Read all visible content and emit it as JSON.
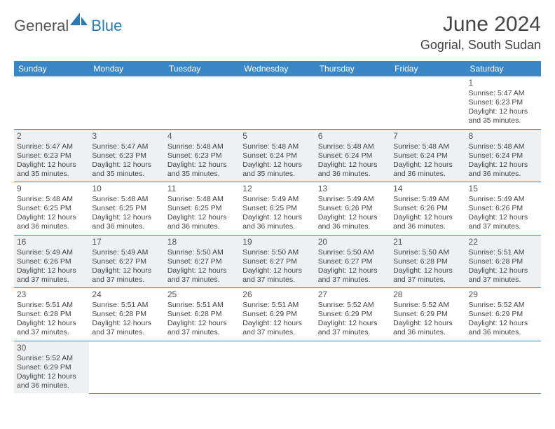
{
  "brand": {
    "text1": "General",
    "text2": "Blue",
    "shape_color": "#2a7ab8"
  },
  "title": "June 2024",
  "location": "Gogrial, South Sudan",
  "header_bg": "#3a87c8",
  "alt_row_bg": "#eef0f2",
  "days_of_week": [
    "Sunday",
    "Monday",
    "Tuesday",
    "Wednesday",
    "Thursday",
    "Friday",
    "Saturday"
  ],
  "weeks": [
    {
      "alt": false,
      "cells": [
        null,
        null,
        null,
        null,
        null,
        null,
        {
          "n": "1",
          "sunrise": "Sunrise: 5:47 AM",
          "sunset": "Sunset: 6:23 PM",
          "daylight": "Daylight: 12 hours and 35 minutes."
        }
      ]
    },
    {
      "alt": true,
      "cells": [
        {
          "n": "2",
          "sunrise": "Sunrise: 5:47 AM",
          "sunset": "Sunset: 6:23 PM",
          "daylight": "Daylight: 12 hours and 35 minutes."
        },
        {
          "n": "3",
          "sunrise": "Sunrise: 5:47 AM",
          "sunset": "Sunset: 6:23 PM",
          "daylight": "Daylight: 12 hours and 35 minutes."
        },
        {
          "n": "4",
          "sunrise": "Sunrise: 5:48 AM",
          "sunset": "Sunset: 6:23 PM",
          "daylight": "Daylight: 12 hours and 35 minutes."
        },
        {
          "n": "5",
          "sunrise": "Sunrise: 5:48 AM",
          "sunset": "Sunset: 6:24 PM",
          "daylight": "Daylight: 12 hours and 35 minutes."
        },
        {
          "n": "6",
          "sunrise": "Sunrise: 5:48 AM",
          "sunset": "Sunset: 6:24 PM",
          "daylight": "Daylight: 12 hours and 36 minutes."
        },
        {
          "n": "7",
          "sunrise": "Sunrise: 5:48 AM",
          "sunset": "Sunset: 6:24 PM",
          "daylight": "Daylight: 12 hours and 36 minutes."
        },
        {
          "n": "8",
          "sunrise": "Sunrise: 5:48 AM",
          "sunset": "Sunset: 6:24 PM",
          "daylight": "Daylight: 12 hours and 36 minutes."
        }
      ]
    },
    {
      "alt": false,
      "cells": [
        {
          "n": "9",
          "sunrise": "Sunrise: 5:48 AM",
          "sunset": "Sunset: 6:25 PM",
          "daylight": "Daylight: 12 hours and 36 minutes."
        },
        {
          "n": "10",
          "sunrise": "Sunrise: 5:48 AM",
          "sunset": "Sunset: 6:25 PM",
          "daylight": "Daylight: 12 hours and 36 minutes."
        },
        {
          "n": "11",
          "sunrise": "Sunrise: 5:48 AM",
          "sunset": "Sunset: 6:25 PM",
          "daylight": "Daylight: 12 hours and 36 minutes."
        },
        {
          "n": "12",
          "sunrise": "Sunrise: 5:49 AM",
          "sunset": "Sunset: 6:25 PM",
          "daylight": "Daylight: 12 hours and 36 minutes."
        },
        {
          "n": "13",
          "sunrise": "Sunrise: 5:49 AM",
          "sunset": "Sunset: 6:26 PM",
          "daylight": "Daylight: 12 hours and 36 minutes."
        },
        {
          "n": "14",
          "sunrise": "Sunrise: 5:49 AM",
          "sunset": "Sunset: 6:26 PM",
          "daylight": "Daylight: 12 hours and 36 minutes."
        },
        {
          "n": "15",
          "sunrise": "Sunrise: 5:49 AM",
          "sunset": "Sunset: 6:26 PM",
          "daylight": "Daylight: 12 hours and 37 minutes."
        }
      ]
    },
    {
      "alt": true,
      "cells": [
        {
          "n": "16",
          "sunrise": "Sunrise: 5:49 AM",
          "sunset": "Sunset: 6:26 PM",
          "daylight": "Daylight: 12 hours and 37 minutes."
        },
        {
          "n": "17",
          "sunrise": "Sunrise: 5:49 AM",
          "sunset": "Sunset: 6:27 PM",
          "daylight": "Daylight: 12 hours and 37 minutes."
        },
        {
          "n": "18",
          "sunrise": "Sunrise: 5:50 AM",
          "sunset": "Sunset: 6:27 PM",
          "daylight": "Daylight: 12 hours and 37 minutes."
        },
        {
          "n": "19",
          "sunrise": "Sunrise: 5:50 AM",
          "sunset": "Sunset: 6:27 PM",
          "daylight": "Daylight: 12 hours and 37 minutes."
        },
        {
          "n": "20",
          "sunrise": "Sunrise: 5:50 AM",
          "sunset": "Sunset: 6:27 PM",
          "daylight": "Daylight: 12 hours and 37 minutes."
        },
        {
          "n": "21",
          "sunrise": "Sunrise: 5:50 AM",
          "sunset": "Sunset: 6:28 PM",
          "daylight": "Daylight: 12 hours and 37 minutes."
        },
        {
          "n": "22",
          "sunrise": "Sunrise: 5:51 AM",
          "sunset": "Sunset: 6:28 PM",
          "daylight": "Daylight: 12 hours and 37 minutes."
        }
      ]
    },
    {
      "alt": false,
      "cells": [
        {
          "n": "23",
          "sunrise": "Sunrise: 5:51 AM",
          "sunset": "Sunset: 6:28 PM",
          "daylight": "Daylight: 12 hours and 37 minutes."
        },
        {
          "n": "24",
          "sunrise": "Sunrise: 5:51 AM",
          "sunset": "Sunset: 6:28 PM",
          "daylight": "Daylight: 12 hours and 37 minutes."
        },
        {
          "n": "25",
          "sunrise": "Sunrise: 5:51 AM",
          "sunset": "Sunset: 6:28 PM",
          "daylight": "Daylight: 12 hours and 37 minutes."
        },
        {
          "n": "26",
          "sunrise": "Sunrise: 5:51 AM",
          "sunset": "Sunset: 6:29 PM",
          "daylight": "Daylight: 12 hours and 37 minutes."
        },
        {
          "n": "27",
          "sunrise": "Sunrise: 5:52 AM",
          "sunset": "Sunset: 6:29 PM",
          "daylight": "Daylight: 12 hours and 37 minutes."
        },
        {
          "n": "28",
          "sunrise": "Sunrise: 5:52 AM",
          "sunset": "Sunset: 6:29 PM",
          "daylight": "Daylight: 12 hours and 36 minutes."
        },
        {
          "n": "29",
          "sunrise": "Sunrise: 5:52 AM",
          "sunset": "Sunset: 6:29 PM",
          "daylight": "Daylight: 12 hours and 36 minutes."
        }
      ]
    },
    {
      "alt": true,
      "last": true,
      "cells": [
        {
          "n": "30",
          "sunrise": "Sunrise: 5:52 AM",
          "sunset": "Sunset: 6:29 PM",
          "daylight": "Daylight: 12 hours and 36 minutes."
        },
        null,
        null,
        null,
        null,
        null,
        null
      ]
    }
  ]
}
